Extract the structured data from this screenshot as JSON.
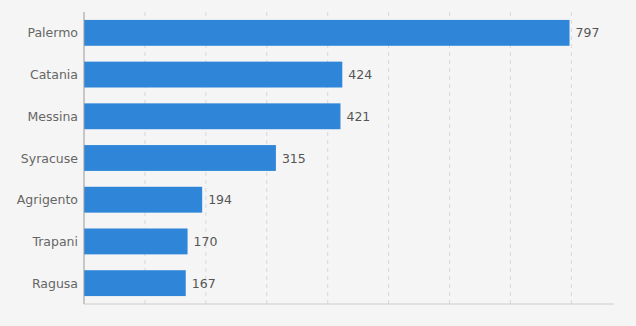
{
  "chart_data": {
    "type": "bar",
    "orientation": "horizontal",
    "categories": [
      "Ragusa",
      "Trapani",
      "Agrigento",
      "Syracuse",
      "Messina",
      "Catania",
      "Palermo"
    ],
    "values": [
      167,
      170,
      194,
      315,
      421,
      424,
      797
    ],
    "color": "#2f86d9",
    "xlim": [
      0,
      870
    ],
    "xticks": [
      100,
      200,
      300,
      400,
      500,
      600,
      700,
      800
    ],
    "grid": true,
    "data_labels": true,
    "tick_labels": "y"
  }
}
